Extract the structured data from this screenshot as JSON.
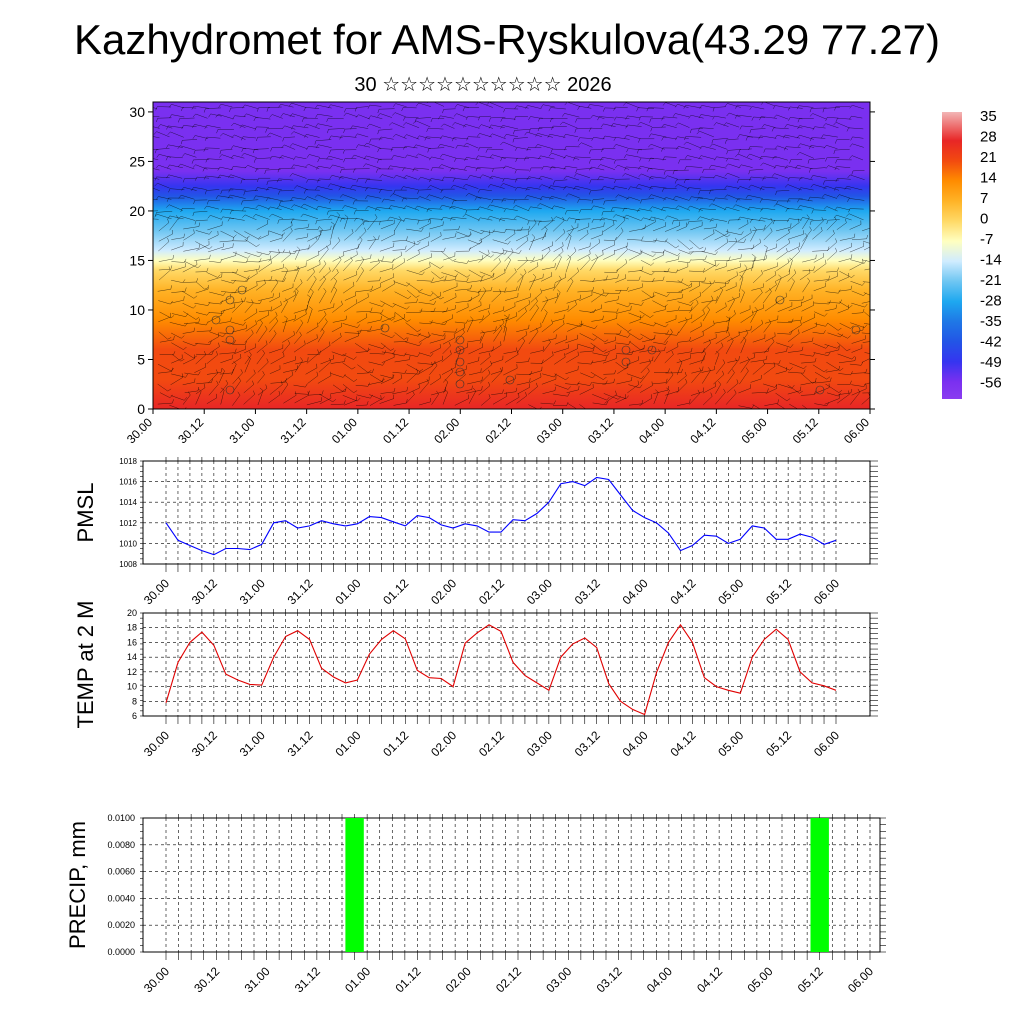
{
  "header": {
    "title": "Kazhydromet for AMS-Ryskulova(43.29 77.27)",
    "subtitle": "30 ☆☆☆☆☆☆☆☆☆☆ 2026"
  },
  "colors": {
    "pmsl_line": "#0000ff",
    "temp_line": "#e00000",
    "precip_bar": "#00ff00",
    "grid": "#000000"
  },
  "time_ticks": [
    "30.00",
    "30.12",
    "31.00",
    "31.12",
    "01.00",
    "01.12",
    "02.00",
    "02.12",
    "03.00",
    "03.12",
    "04.00",
    "04.12",
    "05.00",
    "05.12",
    "06.00"
  ],
  "chart_data": [
    {
      "type": "heatmap",
      "name": "cross-section",
      "x_ticks": [
        "30.00",
        "30.12",
        "31.00",
        "31.12",
        "01.00",
        "01.12",
        "02.00",
        "02.12",
        "03.00",
        "03.12",
        "04.00",
        "04.12",
        "05.00",
        "05.12",
        "06.00"
      ],
      "ylim": [
        0,
        31
      ],
      "y_ticks": [
        0,
        5,
        10,
        15,
        20,
        25,
        30
      ],
      "colorbar": {
        "labels": [
          "35",
          "28",
          "21",
          "14",
          "7",
          "0",
          "-7",
          "-14",
          "-21",
          "-28",
          "-35",
          "-42",
          "-49",
          "-56"
        ],
        "stops": [
          {
            "value": 38,
            "color": "#f2b6b6"
          },
          {
            "value": 28,
            "color": "#e82626"
          },
          {
            "value": 21,
            "color": "#f24a10"
          },
          {
            "value": 14,
            "color": "#ff8c00"
          },
          {
            "value": 7,
            "color": "#ffb326"
          },
          {
            "value": 0,
            "color": "#ffd966"
          },
          {
            "value": -7,
            "color": "#ffffc0"
          },
          {
            "value": -14,
            "color": "#d0ecff"
          },
          {
            "value": -21,
            "color": "#6fc6f2"
          },
          {
            "value": -28,
            "color": "#1ea8f0"
          },
          {
            "value": -35,
            "color": "#1f78e6"
          },
          {
            "value": -42,
            "color": "#2255e6"
          },
          {
            "value": -49,
            "color": "#3535f0"
          },
          {
            "value": -56,
            "color": "#7a30f0"
          },
          {
            "value": -62,
            "color": "#8a3cf0"
          }
        ]
      }
    },
    {
      "type": "line",
      "name": "pmsl",
      "ylabel": "PMSL",
      "ylim": [
        1008,
        1018
      ],
      "y_ticks": [
        1008,
        1010,
        1012,
        1014,
        1016,
        1018
      ],
      "x_ticks": [
        "30.00",
        "30.12",
        "31.00",
        "31.12",
        "01.00",
        "01.12",
        "02.00",
        "02.12",
        "03.00",
        "03.12",
        "04.00",
        "04.12",
        "05.00",
        "05.12",
        "06.00"
      ],
      "x_step_hours": 3,
      "values": [
        1012.0,
        1010.3,
        1009.8,
        1009.3,
        1008.9,
        1009.5,
        1009.5,
        1009.4,
        1009.9,
        1012.0,
        1012.2,
        1011.5,
        1011.7,
        1012.2,
        1011.9,
        1011.7,
        1011.9,
        1012.6,
        1012.5,
        1012.1,
        1011.7,
        1012.7,
        1012.5,
        1011.8,
        1011.5,
        1011.9,
        1011.7,
        1011.1,
        1011.1,
        1012.3,
        1012.2,
        1012.9,
        1014.0,
        1015.8,
        1016.0,
        1015.6,
        1016.4,
        1016.2,
        1014.7,
        1013.2,
        1012.5,
        1012.0,
        1011.0,
        1009.3,
        1009.8,
        1010.8,
        1010.7,
        1010.0,
        1010.4,
        1011.7,
        1011.5,
        1010.4,
        1010.4,
        1010.9,
        1010.6,
        1009.9,
        1010.3
      ]
    },
    {
      "type": "line",
      "name": "temp",
      "ylabel": "TEMP at 2 M",
      "ylim": [
        6,
        20
      ],
      "y_ticks": [
        6,
        8,
        10,
        12,
        14,
        16,
        18,
        20
      ],
      "x_ticks": [
        "30.00",
        "30.12",
        "31.00",
        "31.12",
        "01.00",
        "01.12",
        "02.00",
        "02.12",
        "03.00",
        "03.12",
        "04.00",
        "04.12",
        "05.00",
        "05.12",
        "06.00"
      ],
      "x_step_hours": 3,
      "values": [
        7.8,
        13.3,
        16.0,
        17.4,
        15.6,
        11.7,
        10.9,
        10.3,
        10.2,
        14.0,
        16.8,
        17.6,
        16.4,
        12.5,
        11.3,
        10.5,
        10.9,
        14.4,
        16.4,
        17.6,
        16.5,
        12.2,
        11.2,
        11.1,
        10.0,
        15.9,
        17.3,
        18.4,
        17.5,
        13.3,
        11.5,
        10.5,
        9.5,
        14.0,
        15.8,
        16.6,
        15.3,
        10.4,
        8.0,
        6.9,
        6.2,
        11.9,
        16.0,
        18.4,
        16.0,
        11.2,
        10.0,
        9.5,
        9.1,
        14.0,
        16.4,
        17.8,
        16.4,
        12.0,
        10.5,
        10.1,
        9.5
      ]
    },
    {
      "type": "bar",
      "name": "precip",
      "ylabel": "PRECIP, mm",
      "ylim": [
        0,
        0.01
      ],
      "y_tick_labels": [
        "0.0000",
        "0.0020",
        "0.0040",
        "0.0060",
        "0.0080",
        "0.0100"
      ],
      "x_ticks": [
        "30.00",
        "30.12",
        "31.00",
        "31.12",
        "01.00",
        "01.12",
        "02.00",
        "02.12",
        "03.00",
        "03.12",
        "04.00",
        "04.12",
        "05.00",
        "05.12",
        "06.00"
      ],
      "bars": [
        {
          "hour": 45,
          "value": 0.01
        },
        {
          "hour": 156,
          "value": 0.01
        }
      ]
    }
  ]
}
